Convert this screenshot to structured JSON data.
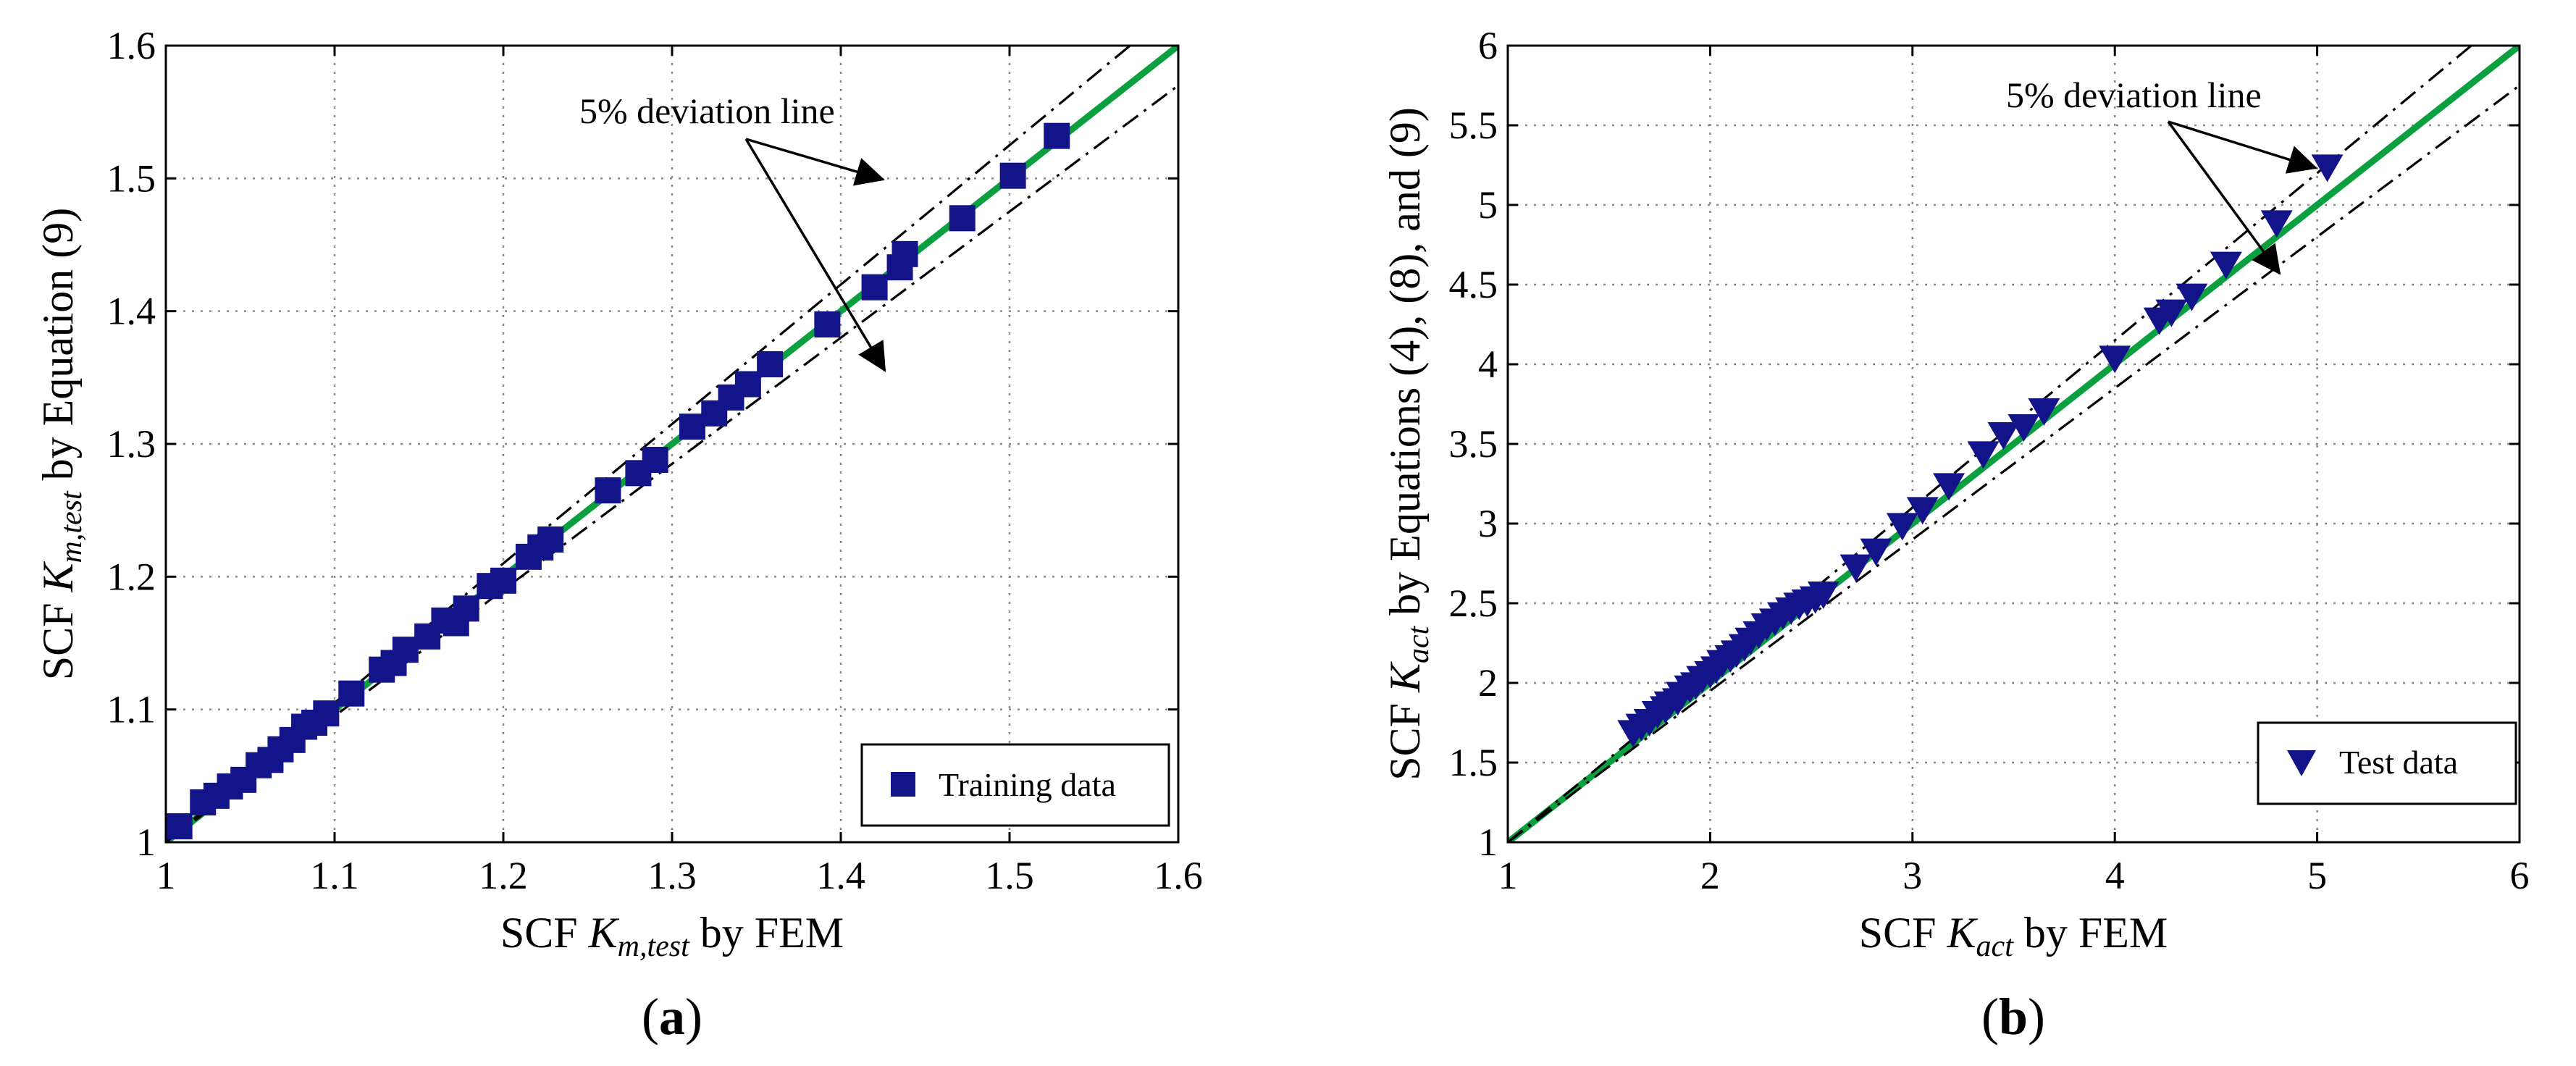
{
  "colors": {
    "marker": "#14148a",
    "fit_line": "#0aa040",
    "grid": "#8a8a8a"
  },
  "chart_data": [
    {
      "panel": "(a)",
      "type": "scatter",
      "xlabel": {
        "prefix": "SCF ",
        "symbol": "K",
        "subscript": "m,test",
        "suffix": " by FEM"
      },
      "ylabel": {
        "prefix": "SCF ",
        "symbol": "K",
        "subscript": "m,test",
        "suffix": " by Equation (9)"
      },
      "xlim": [
        1,
        1.6
      ],
      "ylim": [
        1,
        1.6
      ],
      "xticks": [
        "1",
        "1.1",
        "1.2",
        "1.3",
        "1.4",
        "1.5",
        "1.6"
      ],
      "yticks": [
        "1",
        "1.1",
        "1.2",
        "1.3",
        "1.4",
        "1.5",
        "1.6"
      ],
      "grid": true,
      "annotation": "5% deviation line",
      "legend": {
        "label": "Training data",
        "marker": "square",
        "position": "bottom-right"
      },
      "reference_lines": [
        {
          "name": "fit",
          "style": "solid green",
          "slope": 1.0
        },
        {
          "name": "upper 5% deviation",
          "style": "dash-dot black",
          "slope": 1.05
        },
        {
          "name": "lower 5% deviation",
          "style": "dash-dot black",
          "slope": 0.95
        }
      ],
      "series": [
        {
          "name": "Training data",
          "marker": "square",
          "x": [
            1.008,
            1.022,
            1.03,
            1.038,
            1.046,
            1.055,
            1.062,
            1.068,
            1.075,
            1.082,
            1.088,
            1.095,
            1.11,
            1.128,
            1.135,
            1.142,
            1.155,
            1.165,
            1.172,
            1.178,
            1.192,
            1.2,
            1.215,
            1.222,
            1.228,
            1.262,
            1.28,
            1.29,
            1.312,
            1.325,
            1.335,
            1.345,
            1.358,
            1.392,
            1.42,
            1.435,
            1.438,
            1.472,
            1.502,
            1.528
          ],
          "y": [
            1.012,
            1.03,
            1.035,
            1.042,
            1.047,
            1.058,
            1.062,
            1.07,
            1.077,
            1.087,
            1.09,
            1.097,
            1.112,
            1.13,
            1.135,
            1.145,
            1.155,
            1.167,
            1.165,
            1.176,
            1.193,
            1.197,
            1.215,
            1.222,
            1.228,
            1.265,
            1.278,
            1.288,
            1.313,
            1.323,
            1.335,
            1.345,
            1.36,
            1.39,
            1.418,
            1.433,
            1.443,
            1.47,
            1.502,
            1.532
          ]
        }
      ]
    },
    {
      "panel": "(b)",
      "type": "scatter",
      "xlabel": {
        "prefix": "SCF ",
        "symbol": "K",
        "subscript": "act",
        "suffix": " by FEM"
      },
      "ylabel": {
        "prefix": "SCF ",
        "symbol": "K",
        "subscript": "act",
        "suffix": " by Equations (4), (8), and (9)"
      },
      "xlim": [
        1,
        6
      ],
      "ylim": [
        1,
        6
      ],
      "xticks": [
        "1",
        "2",
        "3",
        "4",
        "5",
        "6"
      ],
      "yticks": [
        "1",
        "1.5",
        "2",
        "2.5",
        "3",
        "3.5",
        "4",
        "4.5",
        "5",
        "5.5",
        "6"
      ],
      "grid": true,
      "annotation": "5% deviation line",
      "legend": {
        "label": "Test data",
        "marker": "triangle-down",
        "position": "bottom-right"
      },
      "reference_lines": [
        {
          "name": "fit",
          "style": "solid green",
          "slope": 1.0
        },
        {
          "name": "upper 5% deviation",
          "style": "dash-dot black",
          "slope": 1.05
        },
        {
          "name": "lower 5% deviation",
          "style": "dash-dot black",
          "slope": 0.95
        }
      ],
      "series": [
        {
          "name": "Test data",
          "marker": "triangle-down",
          "x": [
            1.62,
            1.66,
            1.7,
            1.74,
            1.78,
            1.8,
            1.84,
            1.86,
            1.9,
            1.93,
            1.96,
            2.0,
            2.03,
            2.06,
            2.1,
            2.13,
            2.17,
            2.2,
            2.24,
            2.28,
            2.32,
            2.36,
            2.4,
            2.44,
            2.48,
            2.52,
            2.56,
            2.72,
            2.82,
            2.95,
            3.05,
            3.18,
            3.35,
            3.45,
            3.55,
            3.65,
            4.0,
            4.22,
            4.28,
            4.38,
            4.55,
            4.8,
            5.05
          ],
          "y": [
            1.68,
            1.72,
            1.75,
            1.8,
            1.83,
            1.86,
            1.88,
            1.92,
            1.96,
            1.98,
            2.02,
            2.05,
            2.08,
            2.12,
            2.15,
            2.18,
            2.22,
            2.26,
            2.3,
            2.35,
            2.38,
            2.42,
            2.45,
            2.48,
            2.5,
            2.52,
            2.55,
            2.72,
            2.82,
            2.98,
            3.08,
            3.23,
            3.43,
            3.55,
            3.6,
            3.7,
            4.03,
            4.27,
            4.32,
            4.42,
            4.62,
            4.88,
            5.23
          ]
        }
      ]
    }
  ]
}
